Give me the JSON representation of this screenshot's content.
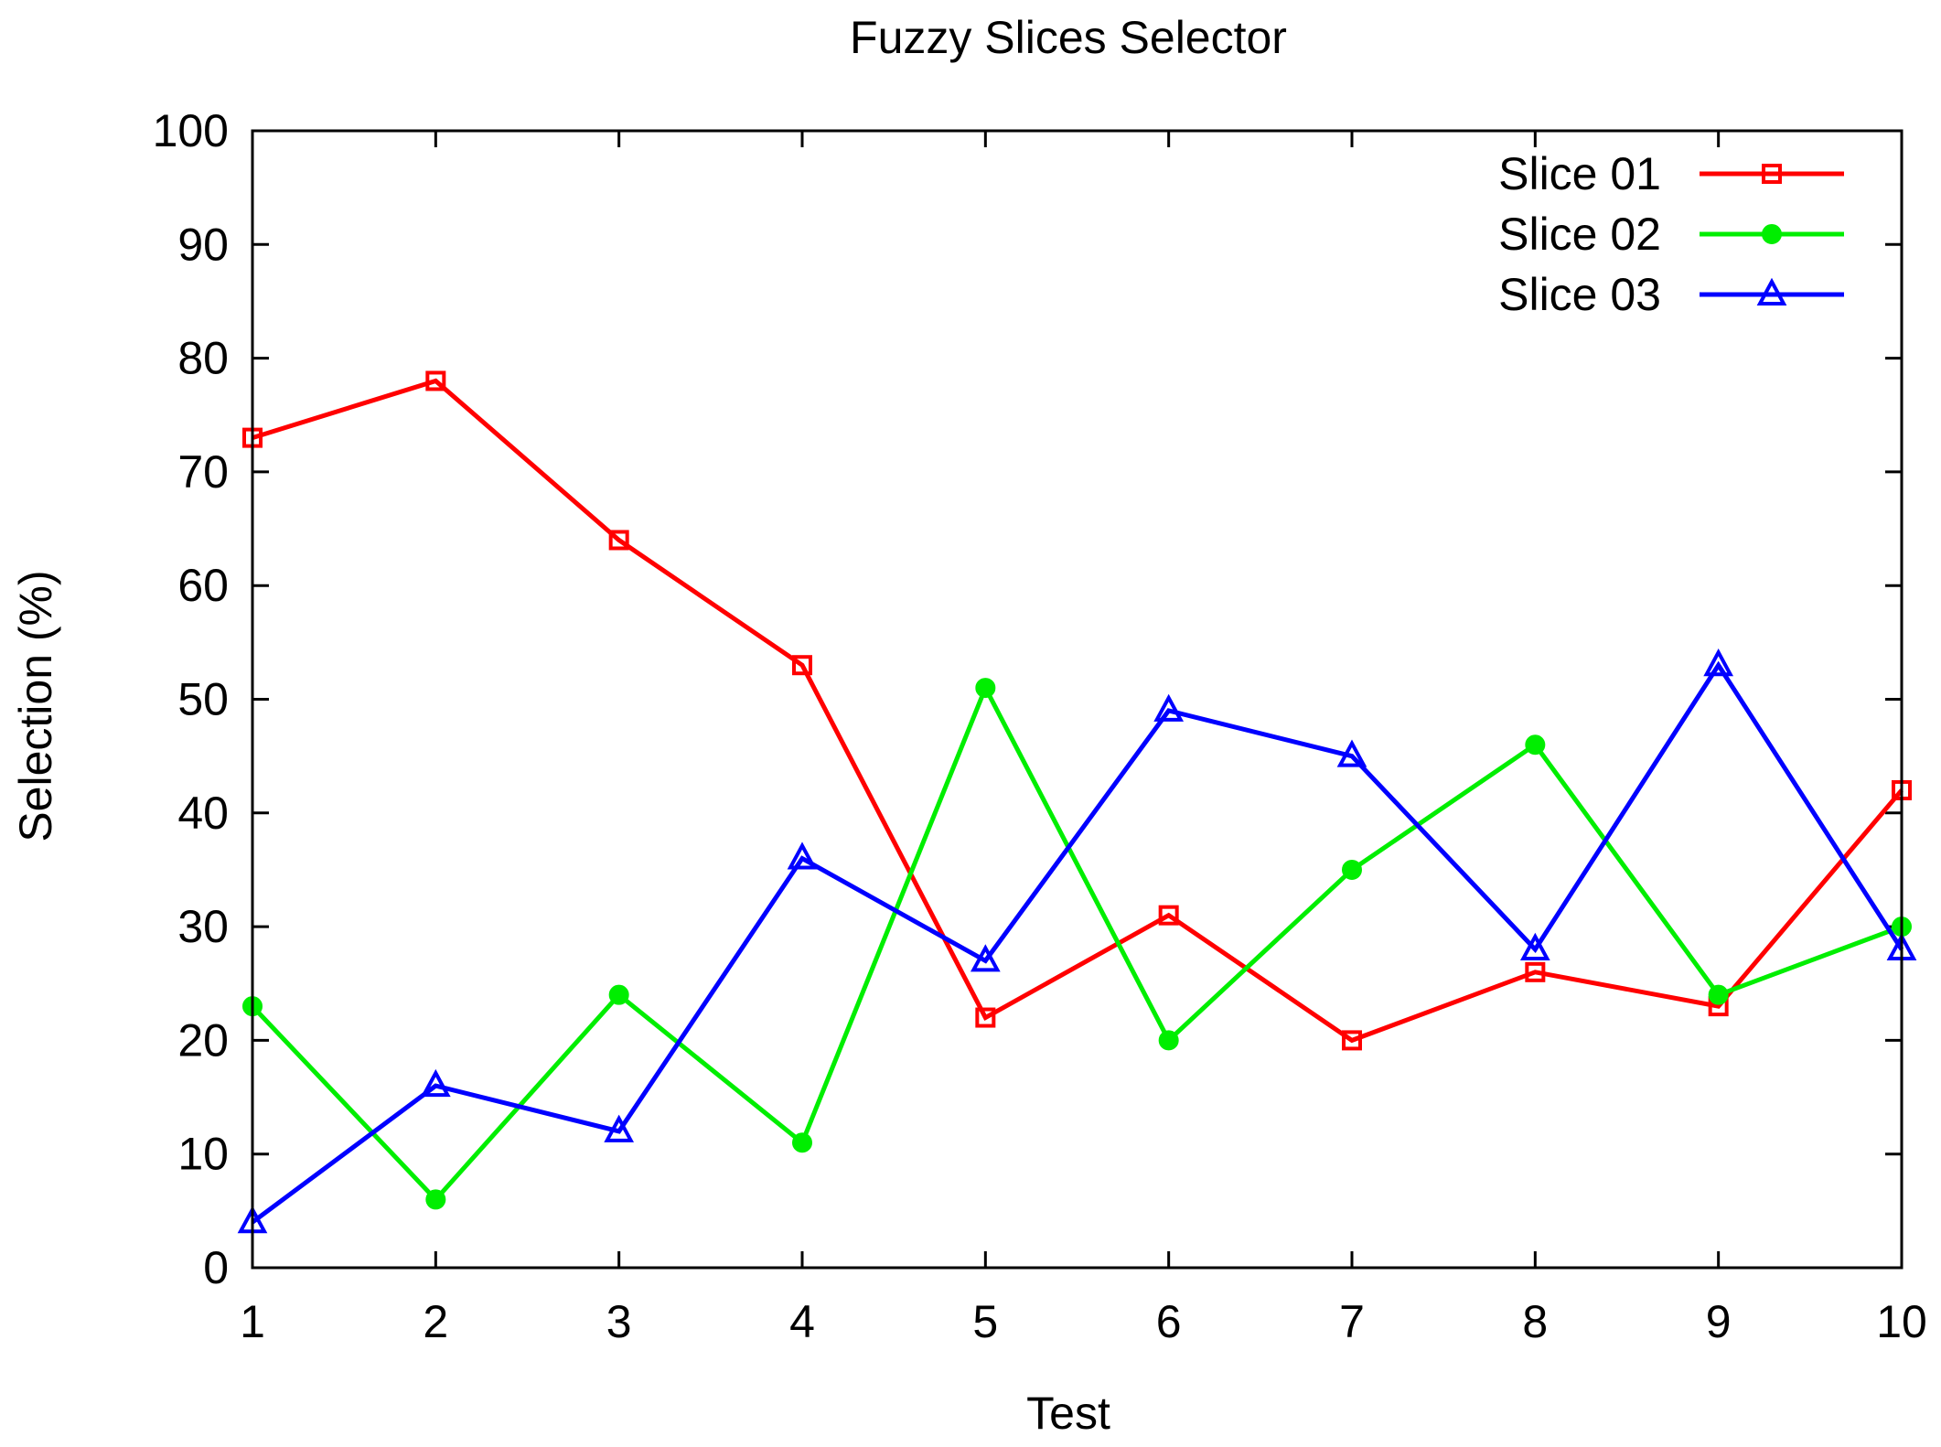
{
  "chart_data": {
    "type": "line",
    "title": "Fuzzy Slices Selector",
    "xlabel": "Test",
    "ylabel": "Selection (%)",
    "x": [
      1,
      2,
      3,
      4,
      5,
      6,
      7,
      8,
      9,
      10
    ],
    "xlim": [
      1,
      10
    ],
    "ylim": [
      0,
      100
    ],
    "xticks": [
      1,
      2,
      3,
      4,
      5,
      6,
      7,
      8,
      9,
      10
    ],
    "yticks": [
      0,
      10,
      20,
      30,
      40,
      50,
      60,
      70,
      80,
      90,
      100
    ],
    "grid": false,
    "legend_position": "top-right",
    "series": [
      {
        "name": "Slice 01",
        "color": "#ff0000",
        "marker": "open-square",
        "values": [
          73,
          78,
          64,
          53,
          22,
          31,
          20,
          26,
          23,
          42
        ]
      },
      {
        "name": "Slice 02",
        "color": "#00ee00",
        "marker": "filled-circle",
        "values": [
          23,
          6,
          24,
          11,
          51,
          20,
          35,
          46,
          24,
          30
        ]
      },
      {
        "name": "Slice 03",
        "color": "#0000ff",
        "marker": "triangle",
        "values": [
          4,
          16,
          12,
          36,
          27,
          49,
          45,
          28,
          53,
          28
        ]
      }
    ]
  }
}
